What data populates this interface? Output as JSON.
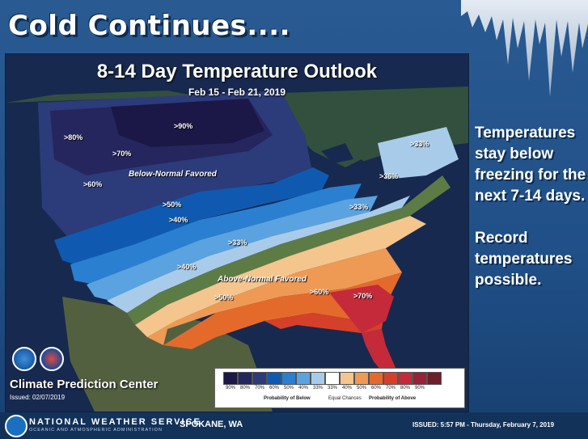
{
  "slide": {
    "headline": "Cold Continues....",
    "side_text": [
      "Temperatures",
      "stay below",
      "freezing for the",
      "next 7-14 days.",
      "",
      "Record",
      "temperatures",
      "possible."
    ]
  },
  "map": {
    "title": "8-14 Day Temperature Outlook",
    "dates": "Feb 15 - Feb 21, 2019",
    "labels": {
      "gt90": ">90%",
      "gt80": ">80%",
      "gt70_nw": ">70%",
      "gt60_w": ">60%",
      "gt50_c": ">50%",
      "gt40_c": ">40%",
      "gt33_c": ">33%",
      "gt33_ne": ">33%",
      "gt36": ">36%",
      "gt33_se": ">33%",
      "gt40_s": ">40%",
      "gt50_s": ">50%",
      "gt60_se": ">60%",
      "gt70_fl": ">70%",
      "below": "Below-Normal Favored",
      "above": "Above-Normal Favored"
    },
    "cpc_name": "Climate Prediction Center",
    "cpc_issued": "Issued: 02/07/2019",
    "legend": {
      "percents": [
        "90%",
        "80%",
        "70%",
        "60%",
        "50%",
        "40%",
        "33%",
        "33%",
        "40%",
        "50%",
        "60%",
        "70%",
        "80%",
        "90%"
      ],
      "colors": [
        "#1b1747",
        "#25265e",
        "#2c3b7a",
        "#0f5ab0",
        "#2b7fd0",
        "#5aa3e0",
        "#a9cbea",
        "#ffffff",
        "#f4c58d",
        "#ee9a55",
        "#e46a2c",
        "#d5402a",
        "#c42a3a",
        "#962436",
        "#6e1d2b"
      ],
      "below_label": "Probability of Below",
      "equal_label": "Equal Chances",
      "above_label": "Probability of Above"
    }
  },
  "footer": {
    "agency": "NATIONAL WEATHER SERVICE",
    "agency_sub": "OCEANIC AND ATMOSPHERIC ADMINISTRATION",
    "office": "SPOKANE, WA",
    "issued": "ISSUED: 5:57 PM - Thursday, February 7, 2019"
  }
}
